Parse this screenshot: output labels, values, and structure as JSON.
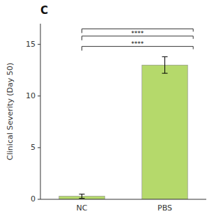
{
  "chart_data": {
    "type": "bar",
    "title": "C",
    "ylabel": "Clinical Severity (Day 50)",
    "categories": [
      "NC",
      "PBS"
    ],
    "values": [
      0.3,
      13.0
    ],
    "errors": [
      0.2,
      0.8
    ],
    "color": "#b5d96b",
    "ylim": [
      0,
      17
    ],
    "yticks": [
      0,
      5,
      10,
      15
    ],
    "grid": false,
    "annotations": [
      {
        "text": "****",
        "y": 14.8
      },
      {
        "text": "****",
        "y": 15.8
      },
      {
        "y": 16.5
      }
    ]
  }
}
